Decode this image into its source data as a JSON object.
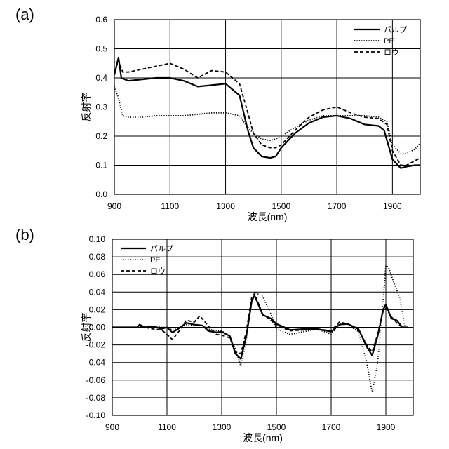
{
  "chart_data": [
    {
      "panel": "(a)",
      "type": "line",
      "xlabel": "波長(nm)",
      "ylabel": "反射率",
      "xlim": [
        900,
        2000
      ],
      "ylim": [
        0,
        0.6
      ],
      "x_ticks": [
        900,
        1100,
        1300,
        1500,
        1700,
        1900
      ],
      "x_ticks_labels": [
        "900",
        "1100",
        "1300",
        "1500",
        "1700",
        "1900"
      ],
      "y_ticks": [
        0,
        0.1,
        0.2,
        0.3,
        0.4,
        0.5,
        0.6
      ],
      "y_ticks_labels": [
        "0.0",
        "0.1",
        "0.2",
        "0.3",
        "0.4",
        "0.5",
        "0.6"
      ],
      "grid": true,
      "legend_position": "top-right",
      "series": [
        {
          "name": "パルプ",
          "style": "solid",
          "color": "#000000",
          "x": [
            900,
            915,
            925,
            950,
            1000,
            1050,
            1100,
            1150,
            1200,
            1250,
            1300,
            1350,
            1380,
            1400,
            1430,
            1460,
            1480,
            1500,
            1550,
            1600,
            1650,
            1700,
            1750,
            1800,
            1850,
            1870,
            1900,
            1930,
            1950,
            1980,
            2000
          ],
          "y": [
            0.41,
            0.47,
            0.4,
            0.39,
            0.395,
            0.4,
            0.4,
            0.39,
            0.37,
            0.375,
            0.38,
            0.34,
            0.22,
            0.16,
            0.13,
            0.125,
            0.13,
            0.16,
            0.21,
            0.245,
            0.265,
            0.27,
            0.26,
            0.24,
            0.235,
            0.22,
            0.12,
            0.09,
            0.095,
            0.1,
            0.1
          ]
        },
        {
          "name": "PE",
          "style": "dotted",
          "color": "#000000",
          "x": [
            900,
            915,
            930,
            950,
            1000,
            1050,
            1100,
            1150,
            1200,
            1250,
            1300,
            1350,
            1380,
            1400,
            1430,
            1460,
            1480,
            1500,
            1550,
            1600,
            1650,
            1700,
            1750,
            1800,
            1850,
            1880,
            1900,
            1930,
            1950,
            1980,
            2000
          ],
          "y": [
            0.37,
            0.33,
            0.27,
            0.265,
            0.265,
            0.27,
            0.27,
            0.27,
            0.275,
            0.28,
            0.28,
            0.27,
            0.23,
            0.21,
            0.19,
            0.185,
            0.19,
            0.2,
            0.23,
            0.255,
            0.27,
            0.27,
            0.27,
            0.27,
            0.265,
            0.25,
            0.17,
            0.14,
            0.14,
            0.155,
            0.175
          ]
        },
        {
          "name": "ロウ",
          "style": "dashed",
          "color": "#000000",
          "x": [
            900,
            915,
            930,
            950,
            1000,
            1050,
            1100,
            1150,
            1200,
            1250,
            1300,
            1350,
            1380,
            1400,
            1430,
            1460,
            1480,
            1500,
            1550,
            1600,
            1650,
            1700,
            1750,
            1800,
            1850,
            1880,
            1900,
            1930,
            1950,
            1980,
            2000
          ],
          "y": [
            0.42,
            0.46,
            0.42,
            0.42,
            0.43,
            0.44,
            0.45,
            0.43,
            0.4,
            0.425,
            0.42,
            0.38,
            0.28,
            0.21,
            0.17,
            0.16,
            0.16,
            0.17,
            0.22,
            0.265,
            0.29,
            0.3,
            0.28,
            0.265,
            0.26,
            0.24,
            0.15,
            0.1,
            0.1,
            0.115,
            0.125
          ]
        }
      ]
    },
    {
      "panel": "(b)",
      "type": "line",
      "xlabel": "波長(nm)",
      "ylabel": "反射率",
      "xlim": [
        900,
        2000
      ],
      "ylim": [
        -0.1,
        0.1
      ],
      "x_ticks": [
        900,
        1100,
        1300,
        1500,
        1700,
        1900
      ],
      "x_ticks_labels": [
        "900",
        "1100",
        "1300",
        "1500",
        "1700",
        "1900"
      ],
      "y_ticks": [
        -0.1,
        -0.08,
        -0.06,
        -0.04,
        -0.02,
        0,
        0.02,
        0.04,
        0.06,
        0.08,
        0.1
      ],
      "y_ticks_labels": [
        "-0.10",
        "-0.08",
        "-0.06",
        "-0.04",
        "-0.02",
        "0.00",
        "0.02",
        "0.04",
        "0.06",
        "0.08",
        "0.10"
      ],
      "grid": true,
      "legend_position": "top-left",
      "series": [
        {
          "name": "パルプ",
          "style": "solid",
          "color": "#000000",
          "x": [
            900,
            990,
            1000,
            1020,
            1050,
            1080,
            1100,
            1120,
            1150,
            1170,
            1200,
            1230,
            1250,
            1280,
            1300,
            1330,
            1350,
            1370,
            1390,
            1410,
            1420,
            1450,
            1480,
            1500,
            1550,
            1600,
            1650,
            1700,
            1730,
            1760,
            1800,
            1830,
            1850,
            1870,
            1890,
            1900,
            1920,
            1940,
            1960,
            1980
          ],
          "y": [
            0,
            0,
            0.003,
            0,
            0.001,
            -0.002,
            0,
            -0.006,
            0,
            0.005,
            0.003,
            0.002,
            -0.004,
            -0.006,
            -0.005,
            -0.01,
            -0.03,
            -0.036,
            -0.01,
            0.03,
            0.036,
            0.014,
            0.01,
            0.004,
            -0.003,
            -0.002,
            -0.002,
            -0.005,
            0.003,
            0.004,
            -0.002,
            -0.022,
            -0.032,
            -0.01,
            0.02,
            0.026,
            0.01,
            0.008,
            0,
            0
          ]
        },
        {
          "name": "PE",
          "style": "dotted",
          "color": "#000000",
          "x": [
            900,
            990,
            1000,
            1020,
            1050,
            1080,
            1100,
            1120,
            1150,
            1170,
            1200,
            1230,
            1250,
            1280,
            1300,
            1330,
            1350,
            1370,
            1390,
            1410,
            1420,
            1450,
            1480,
            1500,
            1550,
            1600,
            1650,
            1700,
            1730,
            1760,
            1800,
            1830,
            1850,
            1870,
            1890,
            1900,
            1910,
            1930,
            1950,
            1970,
            1980
          ],
          "y": [
            0,
            0,
            0.002,
            0,
            0.001,
            0,
            0,
            -0.003,
            0,
            0.003,
            0.002,
            0.002,
            -0.002,
            -0.004,
            -0.004,
            -0.01,
            -0.025,
            -0.044,
            -0.015,
            0.03,
            0.04,
            0.035,
            0.015,
            -0.002,
            -0.008,
            -0.005,
            -0.002,
            -0.008,
            0.004,
            0.003,
            -0.005,
            -0.04,
            -0.074,
            -0.04,
            0.03,
            0.07,
            0.068,
            0.05,
            0.035,
            0,
            0
          ]
        },
        {
          "name": "ロウ",
          "style": "dashed",
          "color": "#000000",
          "x": [
            900,
            990,
            1000,
            1020,
            1050,
            1080,
            1100,
            1120,
            1150,
            1170,
            1200,
            1220,
            1250,
            1280,
            1300,
            1330,
            1350,
            1370,
            1390,
            1410,
            1420,
            1450,
            1480,
            1500,
            1550,
            1600,
            1650,
            1700,
            1730,
            1760,
            1800,
            1830,
            1850,
            1870,
            1890,
            1900,
            1920,
            1940,
            1960,
            1980
          ],
          "y": [
            0,
            0,
            0.001,
            0,
            -0.002,
            -0.003,
            -0.008,
            -0.014,
            -0.002,
            0.008,
            0.006,
            0.013,
            0.002,
            -0.008,
            -0.009,
            -0.012,
            -0.028,
            -0.03,
            -0.005,
            0.035,
            0.038,
            0.015,
            0.008,
            0.002,
            -0.004,
            -0.003,
            -0.002,
            -0.004,
            0.006,
            0.004,
            -0.003,
            -0.02,
            -0.028,
            -0.008,
            0.018,
            0.022,
            0.012,
            0.005,
            0,
            0
          ]
        }
      ]
    }
  ]
}
